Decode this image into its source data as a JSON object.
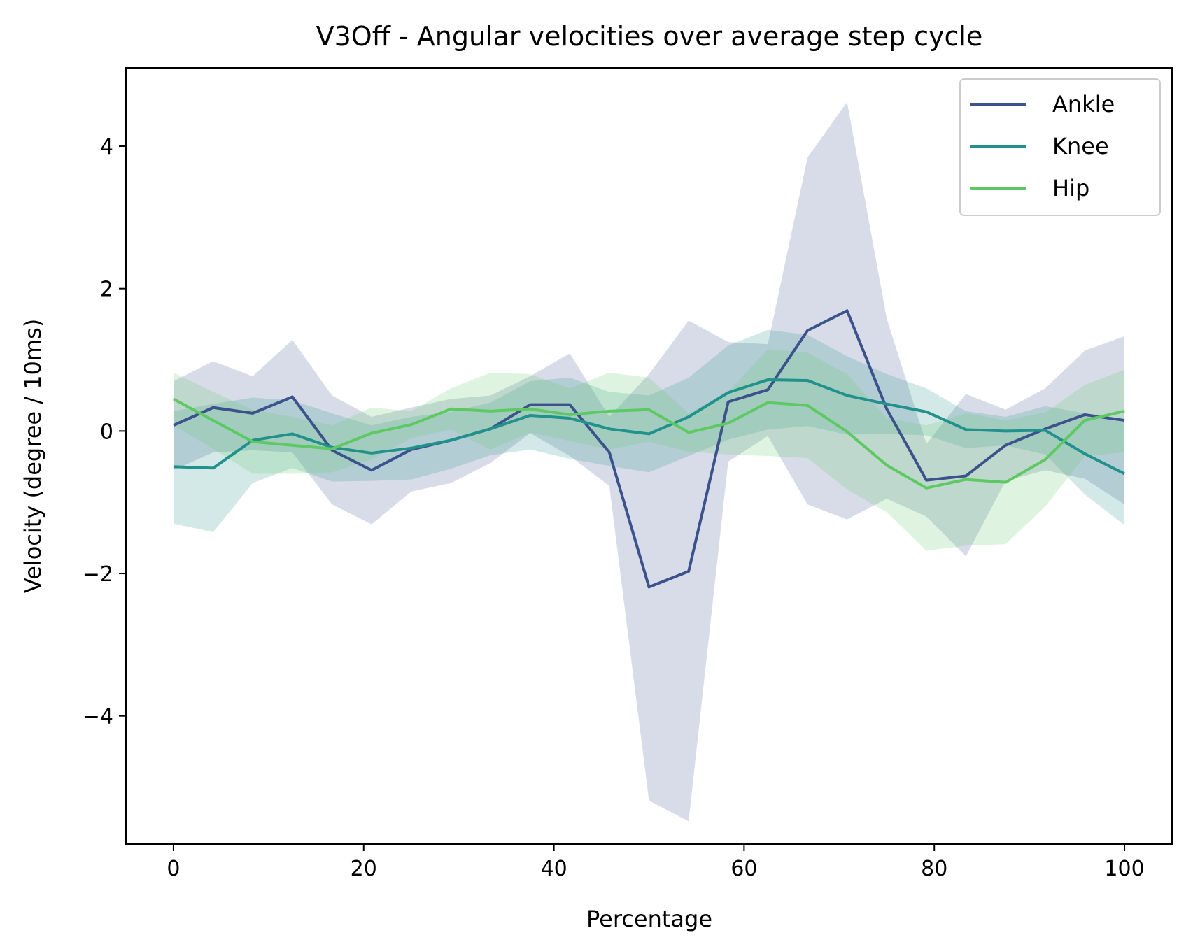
{
  "chart_data": {
    "type": "line",
    "title": "V3Off - Angular velocities over average step cycle",
    "xlabel": "Percentage",
    "ylabel": "Velocity (degree / 10ms)",
    "xlim": [
      -5,
      105
    ],
    "ylim": [
      -5.8,
      5.1
    ],
    "xticks": [
      0,
      20,
      40,
      60,
      80,
      100
    ],
    "yticks": [
      -4,
      -2,
      0,
      2,
      4
    ],
    "xtick_labels": [
      "0",
      "20",
      "40",
      "60",
      "80",
      "100"
    ],
    "ytick_labels": [
      "−4",
      "−2",
      "0",
      "2",
      "4"
    ],
    "grid": false,
    "legend_position": "top-right",
    "x": [
      0,
      4.17,
      8.33,
      12.5,
      16.67,
      20.83,
      25,
      29.17,
      33.33,
      37.5,
      41.67,
      45.83,
      50,
      54.17,
      58.33,
      62.5,
      66.67,
      70.83,
      75,
      79.17,
      83.33,
      87.5,
      91.67,
      95.83,
      100
    ],
    "series": [
      {
        "name": "Ankle",
        "color": "#3b528b",
        "band_color": "#3b528b",
        "values": [
          0.08,
          0.33,
          0.25,
          0.48,
          -0.27,
          -0.55,
          -0.26,
          -0.13,
          0.03,
          0.37,
          0.37,
          -0.3,
          -2.19,
          -1.97,
          0.41,
          0.58,
          1.41,
          1.69,
          0.31,
          -0.69,
          -0.63,
          -0.2,
          0.03,
          0.23,
          0.15
        ],
        "upper": [
          0.7,
          0.98,
          0.77,
          1.28,
          0.5,
          0.2,
          0.33,
          0.45,
          0.5,
          0.77,
          1.09,
          0.2,
          0.8,
          1.55,
          1.25,
          1.22,
          3.84,
          4.62,
          1.58,
          -0.18,
          0.52,
          0.3,
          0.6,
          1.13,
          1.33
        ],
        "lower": [
          -0.55,
          -0.3,
          -0.27,
          -0.3,
          -1.03,
          -1.31,
          -0.85,
          -0.73,
          -0.45,
          -0.03,
          -0.35,
          -0.77,
          -5.19,
          -5.48,
          -0.43,
          -0.07,
          -1.03,
          -1.24,
          -0.95,
          -1.2,
          -1.76,
          -0.7,
          -0.55,
          -0.67,
          -1.03
        ]
      },
      {
        "name": "Knee",
        "color": "#21918c",
        "band_color": "#21918c",
        "values": [
          -0.5,
          -0.52,
          -0.13,
          -0.04,
          -0.23,
          -0.31,
          -0.24,
          -0.13,
          0.03,
          0.22,
          0.18,
          0.03,
          -0.04,
          0.2,
          0.54,
          0.72,
          0.71,
          0.5,
          0.38,
          0.27,
          0.02,
          0.0,
          0.01,
          -0.32,
          -0.6
        ],
        "upper": [
          0.28,
          0.38,
          0.47,
          0.43,
          0.25,
          0.08,
          0.2,
          0.27,
          0.4,
          0.7,
          0.75,
          0.55,
          0.5,
          0.75,
          1.2,
          1.42,
          1.35,
          1.05,
          0.8,
          0.6,
          0.28,
          0.2,
          0.35,
          0.25,
          0.12
        ],
        "lower": [
          -1.3,
          -1.42,
          -0.73,
          -0.52,
          -0.71,
          -0.7,
          -0.68,
          -0.53,
          -0.34,
          -0.26,
          -0.39,
          -0.49,
          -0.58,
          -0.35,
          -0.12,
          0.02,
          0.07,
          -0.05,
          -0.04,
          -0.06,
          -0.24,
          -0.2,
          -0.33,
          -0.89,
          -1.32
        ]
      },
      {
        "name": "Hip",
        "color": "#5ec962",
        "band_color": "#5ec962",
        "values": [
          0.45,
          0.15,
          -0.15,
          -0.2,
          -0.25,
          -0.03,
          0.09,
          0.31,
          0.28,
          0.31,
          0.23,
          0.28,
          0.3,
          -0.02,
          0.11,
          0.4,
          0.36,
          -0.01,
          -0.48,
          -0.8,
          -0.68,
          -0.72,
          -0.4,
          0.15,
          0.28
        ],
        "upper": [
          0.82,
          0.55,
          0.3,
          0.2,
          0.08,
          0.33,
          0.28,
          0.6,
          0.82,
          0.8,
          0.6,
          0.82,
          0.75,
          0.25,
          0.55,
          1.15,
          1.1,
          0.8,
          0.18,
          0.08,
          0.25,
          0.15,
          0.26,
          0.65,
          0.86
        ],
        "lower": [
          0.08,
          -0.25,
          -0.6,
          -0.6,
          -0.58,
          -0.4,
          -0.1,
          0.02,
          -0.26,
          -0.02,
          -0.14,
          -0.26,
          -0.15,
          -0.29,
          -0.33,
          -0.35,
          -0.38,
          -0.82,
          -1.14,
          -1.68,
          -1.61,
          -1.59,
          -1.06,
          -0.35,
          -0.3
        ]
      }
    ]
  }
}
